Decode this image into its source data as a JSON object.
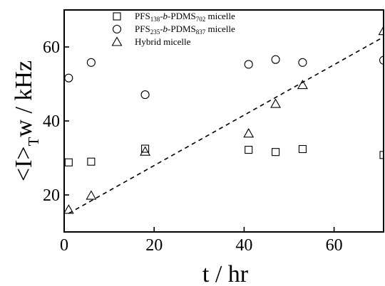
{
  "chart_data": {
    "type": "scatter",
    "xlabel": "t / hr",
    "ylabel_parts": {
      "a": "<I>",
      "sub": "T",
      "b": "w / kHz"
    },
    "xlim": [
      0,
      71
    ],
    "ylim": [
      10,
      70
    ],
    "xticks": [
      0,
      20,
      40,
      60
    ],
    "yticks": [
      20,
      40,
      60
    ],
    "grid": false,
    "legend_position": "top-center",
    "series": [
      {
        "name": "PFS138-b-PDMS702 micelle",
        "name_parts": {
          "a": "PFS",
          "sub1": "138",
          "b": "-",
          "it": "b",
          "c": "-PDMS",
          "sub2": "702",
          "d": " micelle"
        },
        "marker": "square",
        "x": [
          1,
          6,
          18,
          41,
          47,
          53,
          71
        ],
        "y": [
          28.8,
          29.0,
          32.5,
          32.2,
          31.6,
          32.4,
          30.8
        ]
      },
      {
        "name": "PFS235-b-PDMS837 micelle",
        "name_parts": {
          "a": "PFS",
          "sub1": "235",
          "b": "-",
          "it": "b",
          "c": "-PDMS",
          "sub2": "837",
          "d": " micelle"
        },
        "marker": "circle",
        "x": [
          1,
          6,
          18,
          41,
          47,
          53,
          71
        ],
        "y": [
          51.6,
          55.8,
          47.1,
          55.3,
          56.6,
          55.8,
          56.4
        ]
      },
      {
        "name": "Hybrid micelle",
        "marker": "triangle",
        "x": [
          1,
          6,
          18,
          41,
          47,
          53,
          71
        ],
        "y": [
          16.0,
          19.8,
          31.7,
          36.6,
          44.6,
          49.7,
          64.3
        ]
      }
    ],
    "fit_line": {
      "style": "dashed",
      "x": [
        1,
        71
      ],
      "y": [
        15.0,
        62.7
      ]
    }
  }
}
